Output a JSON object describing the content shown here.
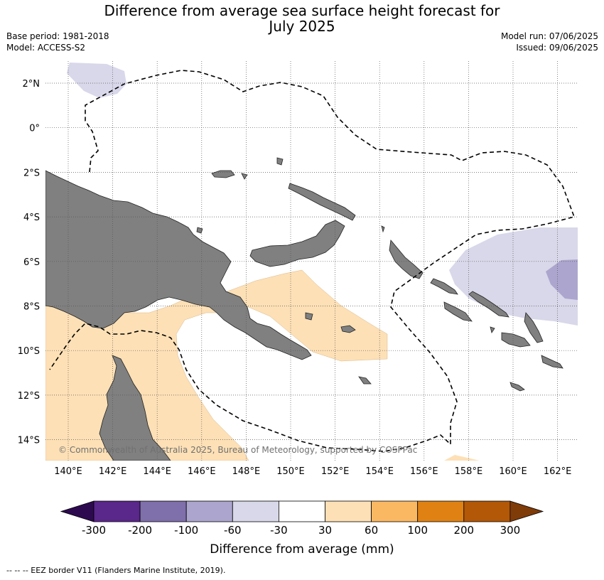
{
  "title_line1": "Difference from average sea surface height forecast for",
  "title_line2": "July 2025",
  "base_period": "Base period: 1981-2018",
  "model": "Model: ACCESS-S2",
  "model_run": "Model run: 07/06/2025",
  "issued": "Issued: 09/06/2025",
  "map": {
    "lat_labels": [
      "2°N",
      "0°",
      "2°S",
      "4°S",
      "6°S",
      "8°S",
      "10°S",
      "12°S",
      "14°S"
    ],
    "lon_labels": [
      "140°E",
      "142°E",
      "144°E",
      "146°E",
      "148°E",
      "150°E",
      "152°E",
      "154°E",
      "156°E",
      "158°E",
      "160°E",
      "162°E"
    ],
    "copyright": "© Commonwealth of Australia 2025, Bureau of Meteorology, supported by COSPPac",
    "land_color": "#808080"
  },
  "legend": {
    "title": "Difference from average (mm)",
    "tick_labels": [
      "-300",
      "-200",
      "-100",
      "-60",
      "-30",
      "30",
      "60",
      "100",
      "200",
      "300"
    ],
    "colors": [
      "#2d0a4f",
      "#5a278b",
      "#7f6fab",
      "#aca5cd",
      "#d8d8ea",
      "#ffffff",
      "#fde0b6",
      "#fbb862",
      "#e08213",
      "#b35806",
      "#7f3b08"
    ]
  },
  "footnote": "--  --  -- EEZ border V11 (Flanders Marine Institute, 2019)."
}
